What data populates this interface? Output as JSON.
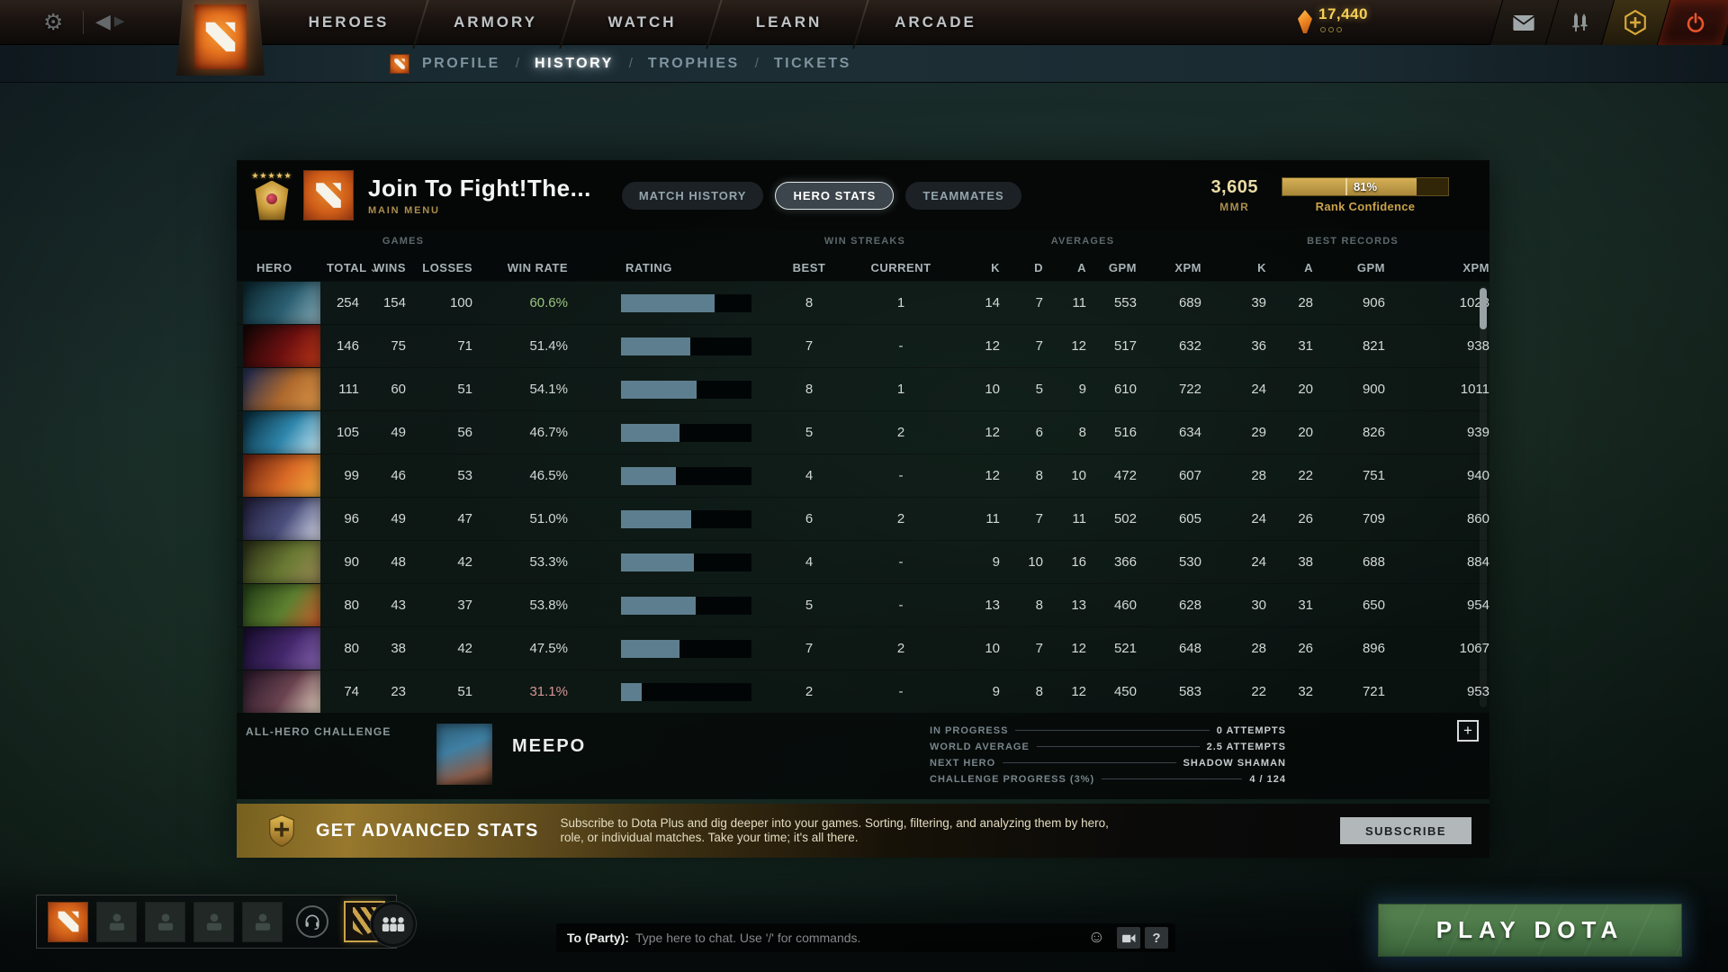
{
  "top_nav": {
    "items": [
      "HEROES",
      "ARMORY",
      "WATCH",
      "LEARN",
      "ARCADE"
    ],
    "currency_amount": "17,440"
  },
  "sub_nav": {
    "items": [
      "PROFILE",
      "HISTORY",
      "TROPHIES",
      "TICKETS"
    ],
    "active": "HISTORY",
    "separator": "/"
  },
  "profile": {
    "name": "Join To Fight!The...",
    "subtitle": "MAIN MENU",
    "medal_stars": "★★★★★",
    "tabs": [
      "MATCH HISTORY",
      "HERO STATS",
      "TEAMMATES"
    ],
    "active_tab": "HERO STATS",
    "mmr_value": "3,605",
    "mmr_label": "MMR",
    "rank_confidence_pct": "81%",
    "rank_confidence_fill": 81,
    "rank_confidence_label": "Rank Confidence"
  },
  "table": {
    "group_headers": {
      "games": "GAMES",
      "win_streaks": "WIN STREAKS",
      "averages": "AVERAGES",
      "best_records": "BEST RECORDS"
    },
    "columns": [
      "HERO",
      "TOTAL",
      "WINS",
      "LOSSES",
      "WIN RATE",
      "RATING",
      "BEST",
      "CURRENT",
      "K",
      "D",
      "A",
      "GPM",
      "XPM",
      "K",
      "A",
      "GPM",
      "XPM"
    ],
    "sorted_by": "TOTAL",
    "sort_caret": "⌄",
    "rows": [
      {
        "hero": "phantom-assassin",
        "portrait": [
          "#0d2a33",
          "#2a5e70",
          "#8fb2bd"
        ],
        "total": "254",
        "wins": "154",
        "losses": "100",
        "win_rate": "60.6%",
        "win_rate_color": "#9cc47e",
        "rating_fill": 72,
        "best": "8",
        "current": "1",
        "k": "14",
        "d": "7",
        "a": "11",
        "gpm": "553",
        "xpm": "689",
        "bk": "39",
        "ba": "28",
        "bgpm": "906",
        "bxpm": "1028"
      },
      {
        "hero": "shadow-fiend",
        "portrait": [
          "#1a0606",
          "#6e1010",
          "#c23a1a"
        ],
        "total": "146",
        "wins": "75",
        "losses": "71",
        "win_rate": "51.4%",
        "win_rate_color": "",
        "rating_fill": 53,
        "best": "7",
        "current": "-",
        "k": "12",
        "d": "7",
        "a": "12",
        "gpm": "517",
        "xpm": "632",
        "bk": "36",
        "ba": "31",
        "bgpm": "821",
        "bxpm": "938"
      },
      {
        "hero": "anti-mage",
        "portrait": [
          "#2a3050",
          "#b06a2e",
          "#e09a4a"
        ],
        "total": "111",
        "wins": "60",
        "losses": "51",
        "win_rate": "54.1%",
        "win_rate_color": "",
        "rating_fill": 58,
        "best": "8",
        "current": "1",
        "k": "10",
        "d": "5",
        "a": "9",
        "gpm": "610",
        "xpm": "722",
        "bk": "24",
        "ba": "20",
        "bgpm": "900",
        "bxpm": "1011"
      },
      {
        "hero": "morphling",
        "portrait": [
          "#0b3344",
          "#2f87ad",
          "#cfeef7"
        ],
        "total": "105",
        "wins": "49",
        "losses": "56",
        "win_rate": "46.7%",
        "win_rate_color": "",
        "rating_fill": 45,
        "best": "5",
        "current": "2",
        "k": "12",
        "d": "6",
        "a": "8",
        "gpm": "516",
        "xpm": "634",
        "bk": "29",
        "ba": "20",
        "bgpm": "826",
        "bxpm": "939"
      },
      {
        "hero": "lina",
        "portrait": [
          "#6e2410",
          "#d96a26",
          "#f7b03e"
        ],
        "total": "99",
        "wins": "46",
        "losses": "53",
        "win_rate": "46.5%",
        "win_rate_color": "",
        "rating_fill": 42,
        "best": "4",
        "current": "-",
        "k": "12",
        "d": "8",
        "a": "10",
        "gpm": "472",
        "xpm": "607",
        "bk": "28",
        "ba": "22",
        "bgpm": "751",
        "bxpm": "940"
      },
      {
        "hero": "drow-ranger",
        "portrait": [
          "#23203d",
          "#4a4f7c",
          "#dfe2f2"
        ],
        "total": "96",
        "wins": "49",
        "losses": "47",
        "win_rate": "51.0%",
        "win_rate_color": "",
        "rating_fill": 54,
        "best": "6",
        "current": "2",
        "k": "11",
        "d": "7",
        "a": "11",
        "gpm": "502",
        "xpm": "605",
        "bk": "24",
        "ba": "26",
        "bgpm": "709",
        "bxpm": "860"
      },
      {
        "hero": "pudge",
        "portrait": [
          "#2e3318",
          "#697a33",
          "#9a8a55"
        ],
        "total": "90",
        "wins": "48",
        "losses": "42",
        "win_rate": "53.3%",
        "win_rate_color": "",
        "rating_fill": 56,
        "best": "4",
        "current": "-",
        "k": "9",
        "d": "10",
        "a": "16",
        "gpm": "366",
        "xpm": "530",
        "bk": "24",
        "ba": "38",
        "bgpm": "688",
        "bxpm": "884"
      },
      {
        "hero": "windranger",
        "portrait": [
          "#274418",
          "#5d8030",
          "#cf5a2a"
        ],
        "total": "80",
        "wins": "43",
        "losses": "37",
        "win_rate": "53.8%",
        "win_rate_color": "",
        "rating_fill": 57,
        "best": "5",
        "current": "-",
        "k": "13",
        "d": "8",
        "a": "13",
        "gpm": "460",
        "xpm": "628",
        "bk": "30",
        "ba": "31",
        "bgpm": "650",
        "bxpm": "954"
      },
      {
        "hero": "faceless-void",
        "portrait": [
          "#1c0f33",
          "#43276b",
          "#8a68b5"
        ],
        "total": "80",
        "wins": "38",
        "losses": "42",
        "win_rate": "47.5%",
        "win_rate_color": "",
        "rating_fill": 45,
        "best": "7",
        "current": "2",
        "k": "10",
        "d": "7",
        "a": "12",
        "gpm": "521",
        "xpm": "648",
        "bk": "28",
        "ba": "26",
        "bgpm": "896",
        "bxpm": "1067"
      },
      {
        "hero": "invoker",
        "portrait": [
          "#2e1b2b",
          "#6b4350",
          "#e9d6c4"
        ],
        "total": "74",
        "wins": "23",
        "losses": "51",
        "win_rate": "31.1%",
        "win_rate_color": "#d59494",
        "rating_fill": 16,
        "best": "2",
        "current": "-",
        "k": "9",
        "d": "8",
        "a": "12",
        "gpm": "450",
        "xpm": "583",
        "bk": "22",
        "ba": "32",
        "bgpm": "721",
        "bxpm": "953"
      }
    ]
  },
  "challenge": {
    "label": "ALL-HERO CHALLENGE",
    "hero_name": "MEEPO",
    "stats": [
      {
        "label": "IN PROGRESS",
        "value": "0 ATTEMPTS"
      },
      {
        "label": "WORLD AVERAGE",
        "value": "2.5 ATTEMPTS"
      },
      {
        "label": "NEXT HERO",
        "value": "SHADOW SHAMAN"
      },
      {
        "label": "CHALLENGE PROGRESS (3%)",
        "value": "4 / 124"
      }
    ],
    "add_button": "+"
  },
  "banner": {
    "title": "GET ADVANCED STATS",
    "description": "Subscribe to Dota Plus and dig deeper into your games. Sorting, filtering, and analyzing them by hero, role, or individual matches. Take your time; it's all there.",
    "button": "SUBSCRIBE"
  },
  "footer": {
    "chat_prefix": "To (Party):",
    "chat_placeholder": "Type here to chat. Use '/' for commands.",
    "emoji_glyph": "☺",
    "help_button": "?",
    "play_button": "PLAY DOTA"
  },
  "colors": {
    "text_default": "#d3d8d8",
    "accent_gold": "#c9a24a",
    "rating_fill": "#5d7e8e",
    "win_green": "#9cc47e",
    "win_red": "#d59494",
    "play_green": "#4a7647"
  }
}
